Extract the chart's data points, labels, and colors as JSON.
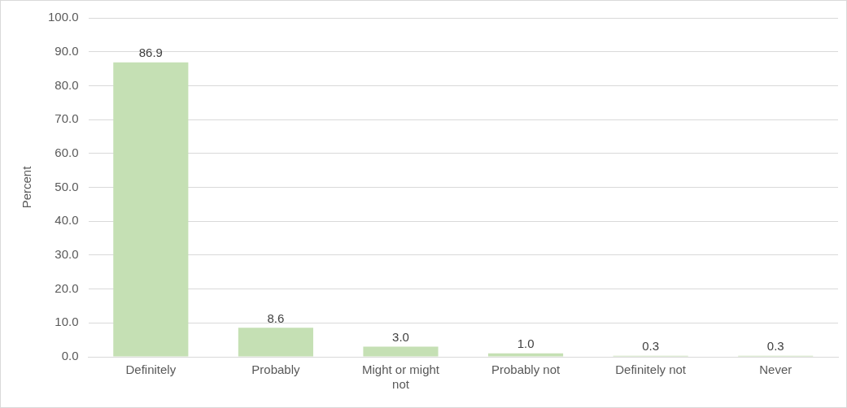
{
  "chart_data": {
    "type": "bar",
    "ylabel": "Percent",
    "categories": [
      "Definitely",
      "Probably",
      "Might or might not",
      "Probably not",
      "Definitely not",
      "Never"
    ],
    "values": [
      86.9,
      8.6,
      3.0,
      1.0,
      0.3,
      0.3
    ],
    "value_labels": [
      "86.9",
      "8.6",
      "3.0",
      "1.0",
      "0.3",
      "0.3"
    ],
    "color": "#c5e0b4",
    "ylim": [
      0,
      100
    ],
    "yticks": [
      {
        "value": 0,
        "label": "0.0"
      },
      {
        "value": 10,
        "label": "10.0"
      },
      {
        "value": 20,
        "label": "20.0"
      },
      {
        "value": 30,
        "label": "30.0"
      },
      {
        "value": 40,
        "label": "40.0"
      },
      {
        "value": 50,
        "label": "50.0"
      },
      {
        "value": 60,
        "label": "60.0"
      },
      {
        "value": 70,
        "label": "70.0"
      },
      {
        "value": 80,
        "label": "80.0"
      },
      {
        "value": 90,
        "label": "90.0"
      },
      {
        "value": 100,
        "label": "100.0"
      }
    ],
    "grid": "y",
    "legend": false
  }
}
